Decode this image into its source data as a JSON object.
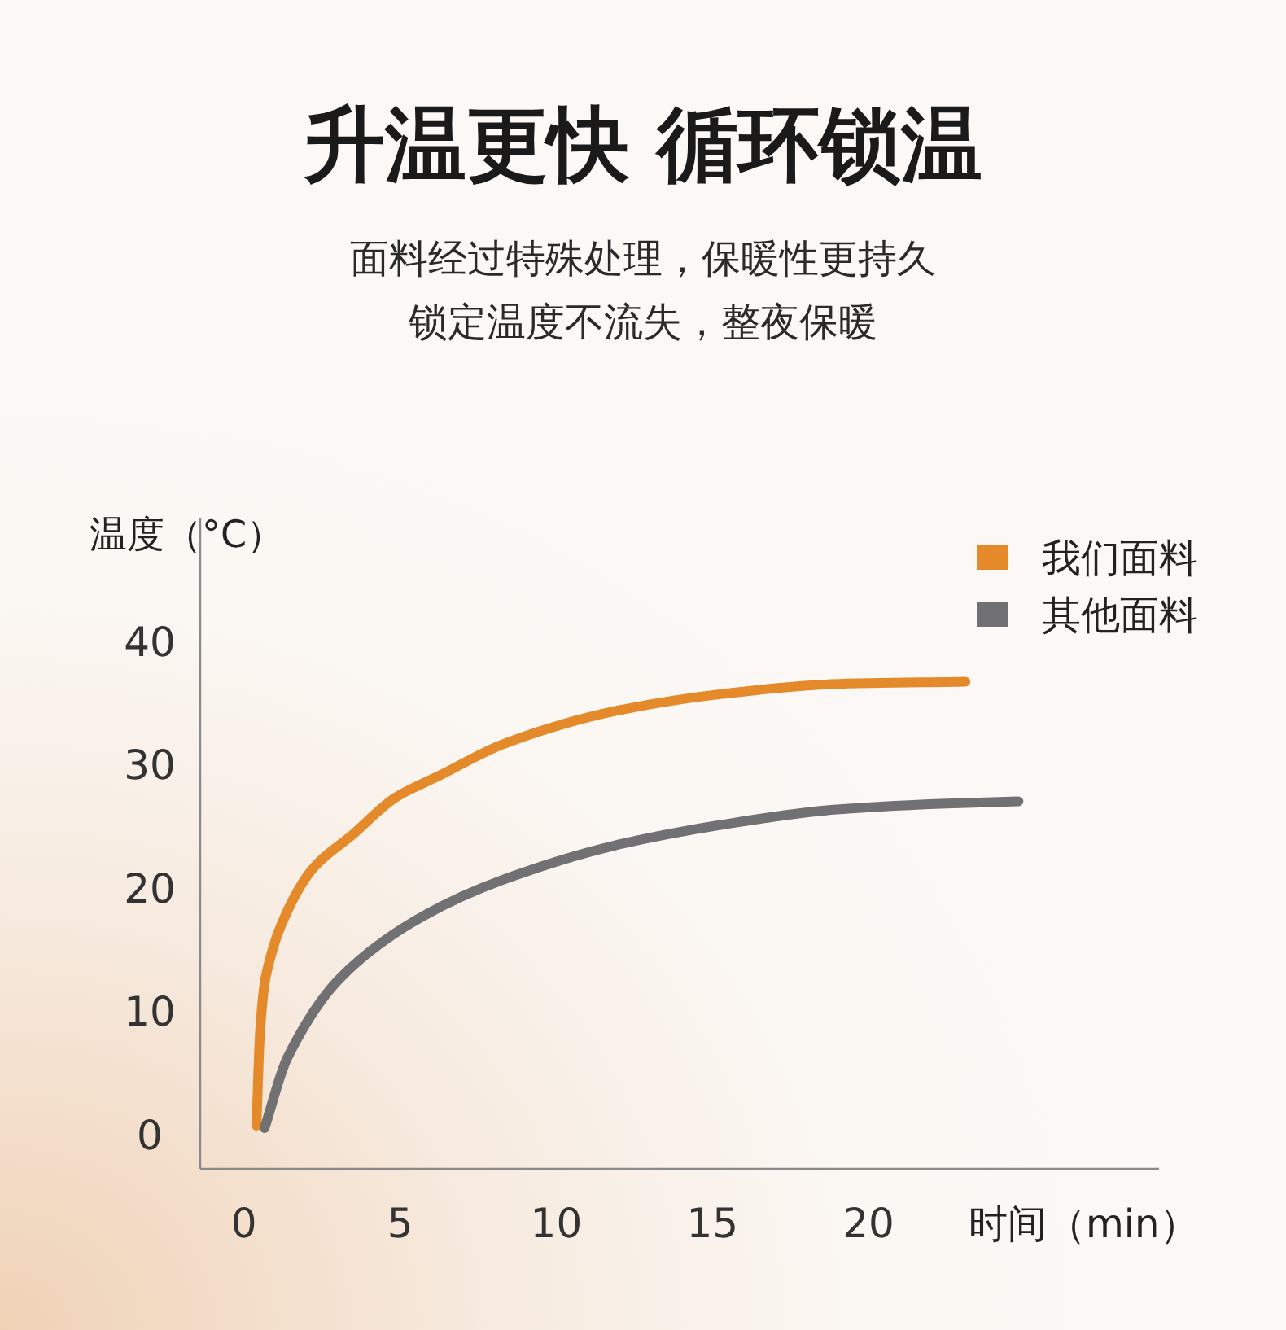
{
  "chart_data": {
    "type": "line",
    "title": "升温更快 循环锁温",
    "subtitle": "面料经过特殊处理，保暖性更持久锁定温度不流失，整夜保暖",
    "xlabel": "时间（min）",
    "ylabel": "温度（°C）",
    "xlim": [
      -1.4,
      29.3
    ],
    "ylim": [
      -2.8,
      50
    ],
    "xticks": [
      0,
      5,
      10,
      15,
      20
    ],
    "yticks": [
      0,
      10,
      20,
      30,
      40
    ],
    "grid": false,
    "legend": "top right",
    "marker": "none",
    "line_style": "solid",
    "series": [
      {
        "name": "我们面料",
        "color": "#e48a2a",
        "x": [
          0.4,
          0.52,
          0.7,
          1.39,
          2.26,
          3.48,
          4.85,
          6.27,
          8.36,
          11.85,
          15.3,
          18.8,
          23.1
        ],
        "values": [
          0.7,
          8.5,
          12.8,
          18.1,
          21.7,
          24.3,
          27.3,
          29.1,
          31.7,
          34.3,
          35.7,
          36.5,
          36.7
        ]
      },
      {
        "name": "其他面料",
        "color": "#717073",
        "x": [
          0.66,
          1.39,
          3.13,
          5.74,
          8.36,
          11.84,
          15.3,
          18.8,
          22.3,
          24.8
        ],
        "values": [
          0.5,
          6.2,
          12.8,
          17.7,
          20.7,
          23.4,
          25.1,
          26.3,
          26.8,
          27.0
        ]
      }
    ]
  }
}
